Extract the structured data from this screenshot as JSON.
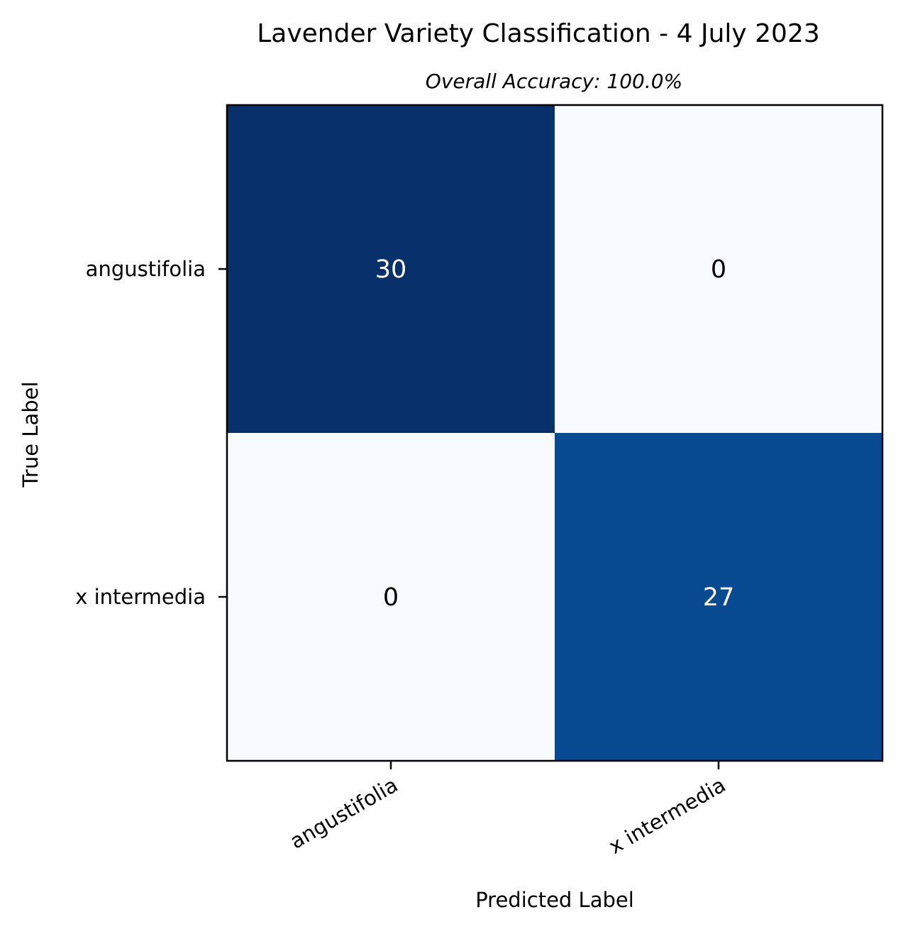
{
  "chart_data": {
    "type": "heatmap",
    "title": "Lavender Variety Classification - 4 July 2023",
    "subtitle": "Overall Accuracy: 100.0%",
    "xlabel": "Predicted Label",
    "ylabel": "True Label",
    "x_categories": [
      "angustifolia",
      "x intermedia"
    ],
    "y_categories": [
      "angustifolia",
      "x intermedia"
    ],
    "matrix": [
      [
        30,
        0
      ],
      [
        0,
        27
      ]
    ],
    "colormap": "Blues",
    "colors": {
      "low": "#f7fbff",
      "high": "#08306b",
      "text_dark": "#000000",
      "text_light": "#ffffff",
      "axis": "#000000"
    }
  }
}
